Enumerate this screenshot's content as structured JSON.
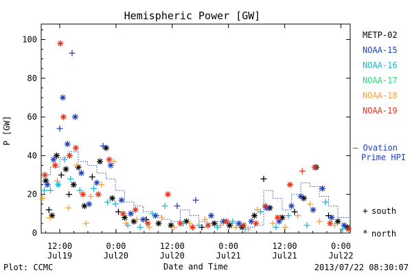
{
  "chart_data": {
    "type": "scatter",
    "title": "Hemispheric Power [GW]",
    "ylabel": "P [GW]",
    "xlabel": "Date and Time",
    "ylim": [
      0,
      108
    ],
    "yticks": [
      0,
      20,
      40,
      60,
      80,
      100
    ],
    "xlim": [
      0,
      100
    ],
    "xticks": [
      {
        "x": 6.0,
        "time": "12:00",
        "date": "Jul19"
      },
      {
        "x": 24.2,
        "time": "0:00",
        "date": "Jul20"
      },
      {
        "x": 42.4,
        "time": "12:00",
        "date": "Jul20"
      },
      {
        "x": 60.6,
        "time": "0:00",
        "date": "Jul21"
      },
      {
        "x": 78.8,
        "time": "12:00",
        "date": "Jul21"
      },
      {
        "x": 97.0,
        "time": "0:00",
        "date": "Jul22"
      }
    ],
    "grid": false,
    "legend_position": "right",
    "series": [
      {
        "name": "METP-02",
        "color": "#000000",
        "points": [
          {
            "x": 1.5,
            "y": 27,
            "m": "*"
          },
          {
            "x": 2.5,
            "y": 12,
            "m": "+"
          },
          {
            "x": 3.5,
            "y": 9,
            "m": "*"
          },
          {
            "x": 5.0,
            "y": 40,
            "m": "*"
          },
          {
            "x": 6.5,
            "y": 30,
            "m": "+"
          },
          {
            "x": 8.0,
            "y": 33,
            "m": "*"
          },
          {
            "x": 9.0,
            "y": 20,
            "m": "+"
          },
          {
            "x": 10.5,
            "y": 25,
            "m": "*"
          },
          {
            "x": 12.0,
            "y": 34,
            "m": "*"
          },
          {
            "x": 14.0,
            "y": 14,
            "m": "*"
          },
          {
            "x": 16.5,
            "y": 29,
            "m": "+"
          },
          {
            "x": 19.0,
            "y": 37,
            "m": "*"
          },
          {
            "x": 21.0,
            "y": 44,
            "m": "*"
          },
          {
            "x": 23.0,
            "y": 18,
            "m": "*"
          },
          {
            "x": 25.0,
            "y": 11,
            "m": "+"
          },
          {
            "x": 27.0,
            "y": 8,
            "m": "*"
          },
          {
            "x": 30.0,
            "y": 6,
            "m": "*"
          },
          {
            "x": 34.0,
            "y": 7,
            "m": "+"
          },
          {
            "x": 38.0,
            "y": 5,
            "m": "*"
          },
          {
            "x": 42.0,
            "y": 4,
            "m": "*"
          },
          {
            "x": 47.0,
            "y": 6,
            "m": "*"
          },
          {
            "x": 52.0,
            "y": 3,
            "m": "+"
          },
          {
            "x": 56.0,
            "y": 5,
            "m": "*"
          },
          {
            "x": 61.0,
            "y": 4,
            "m": "*"
          },
          {
            "x": 65.0,
            "y": 3,
            "m": "*"
          },
          {
            "x": 69.0,
            "y": 9,
            "m": "*"
          },
          {
            "x": 72.0,
            "y": 28,
            "m": "+"
          },
          {
            "x": 74.0,
            "y": 13,
            "m": "*"
          },
          {
            "x": 78.0,
            "y": 8,
            "m": "*"
          },
          {
            "x": 82.0,
            "y": 11,
            "m": "+"
          },
          {
            "x": 85.0,
            "y": 18,
            "m": "*"
          },
          {
            "x": 89.0,
            "y": 34,
            "m": "*"
          },
          {
            "x": 93.0,
            "y": 9,
            "m": "+"
          },
          {
            "x": 96.0,
            "y": 6,
            "m": "*"
          },
          {
            "x": 99.0,
            "y": 3,
            "m": "*"
          }
        ]
      },
      {
        "name": "NOAA-15",
        "color": "#1f3fbf",
        "points": [
          {
            "x": 2.0,
            "y": 25,
            "m": "*"
          },
          {
            "x": 4.0,
            "y": 38,
            "m": "*"
          },
          {
            "x": 6.0,
            "y": 54,
            "m": "+"
          },
          {
            "x": 7.0,
            "y": 70,
            "m": "*"
          },
          {
            "x": 8.5,
            "y": 46,
            "m": "*"
          },
          {
            "x": 10.0,
            "y": 93,
            "m": "+"
          },
          {
            "x": 11.0,
            "y": 60,
            "m": "*"
          },
          {
            "x": 13.0,
            "y": 31,
            "m": "*"
          },
          {
            "x": 15.5,
            "y": 15,
            "m": "*"
          },
          {
            "x": 18.0,
            "y": 26,
            "m": "*"
          },
          {
            "x": 20.0,
            "y": 45,
            "m": "+"
          },
          {
            "x": 22.5,
            "y": 35,
            "m": "*"
          },
          {
            "x": 26.0,
            "y": 17,
            "m": "*"
          },
          {
            "x": 29.0,
            "y": 10,
            "m": "*"
          },
          {
            "x": 33.0,
            "y": 7,
            "m": "*"
          },
          {
            "x": 37.0,
            "y": 9,
            "m": "*"
          },
          {
            "x": 44.0,
            "y": 14,
            "m": "+"
          },
          {
            "x": 50.0,
            "y": 17,
            "m": "+"
          },
          {
            "x": 55.0,
            "y": 9,
            "m": "*"
          },
          {
            "x": 59.0,
            "y": 6,
            "m": "*"
          },
          {
            "x": 64.0,
            "y": 5,
            "m": "*"
          },
          {
            "x": 68.0,
            "y": 6,
            "m": "*"
          },
          {
            "x": 73.0,
            "y": 13,
            "m": "*"
          },
          {
            "x": 77.0,
            "y": 6,
            "m": "*"
          },
          {
            "x": 81.0,
            "y": 14,
            "m": "*"
          },
          {
            "x": 84.0,
            "y": 19,
            "m": "*"
          },
          {
            "x": 88.0,
            "y": 12,
            "m": "*"
          },
          {
            "x": 91.0,
            "y": 23,
            "m": "*"
          },
          {
            "x": 94.0,
            "y": 8,
            "m": "*"
          },
          {
            "x": 98.0,
            "y": 4,
            "m": "*"
          }
        ]
      },
      {
        "name": "NOAA-16",
        "color": "#19b4d6",
        "points": [
          {
            "x": 1.0,
            "y": 22,
            "m": "+"
          },
          {
            "x": 3.0,
            "y": 22,
            "m": "+"
          },
          {
            "x": 5.5,
            "y": 25,
            "m": "*"
          },
          {
            "x": 7.5,
            "y": 38,
            "m": "+"
          },
          {
            "x": 9.5,
            "y": 28,
            "m": "+"
          },
          {
            "x": 12.5,
            "y": 22,
            "m": "+"
          },
          {
            "x": 17.0,
            "y": 23,
            "m": "+"
          },
          {
            "x": 21.5,
            "y": 16,
            "m": "+"
          },
          {
            "x": 24.0,
            "y": 15,
            "m": "+"
          },
          {
            "x": 28.0,
            "y": 4,
            "m": "+"
          },
          {
            "x": 32.0,
            "y": 3,
            "m": "+"
          },
          {
            "x": 36.0,
            "y": 10,
            "m": "+"
          },
          {
            "x": 40.0,
            "y": 14,
            "m": "+"
          },
          {
            "x": 46.0,
            "y": 5,
            "m": "+"
          },
          {
            "x": 51.0,
            "y": 4,
            "m": "+"
          },
          {
            "x": 57.0,
            "y": 3,
            "m": "+"
          },
          {
            "x": 62.0,
            "y": 6,
            "m": "+"
          },
          {
            "x": 66.0,
            "y": 2,
            "m": "+"
          },
          {
            "x": 71.0,
            "y": 11,
            "m": "+"
          },
          {
            "x": 76.0,
            "y": 3,
            "m": "+"
          },
          {
            "x": 80.0,
            "y": 9,
            "m": "+"
          },
          {
            "x": 86.0,
            "y": 4,
            "m": "+"
          },
          {
            "x": 92.0,
            "y": 16,
            "m": "+"
          },
          {
            "x": 97.5,
            "y": 2,
            "m": "+"
          }
        ]
      },
      {
        "name": "NOAA-17",
        "color": "#2fd87a",
        "points": []
      },
      {
        "name": "NOAA-18",
        "color": "#f2a03a",
        "points": [
          {
            "x": 0.5,
            "y": 18,
            "m": "+"
          },
          {
            "x": 2.8,
            "y": 8,
            "m": "+"
          },
          {
            "x": 5.2,
            "y": 27,
            "m": "+"
          },
          {
            "x": 8.8,
            "y": 13,
            "m": "+"
          },
          {
            "x": 11.5,
            "y": 35,
            "m": "+"
          },
          {
            "x": 14.5,
            "y": 5,
            "m": "+"
          },
          {
            "x": 16.0,
            "y": 19,
            "m": "+"
          },
          {
            "x": 19.5,
            "y": 25,
            "m": "+"
          },
          {
            "x": 23.5,
            "y": 37,
            "m": "+"
          },
          {
            "x": 27.5,
            "y": 5,
            "m": "+"
          },
          {
            "x": 31.0,
            "y": 7,
            "m": "+"
          },
          {
            "x": 35.0,
            "y": 3,
            "m": "+"
          },
          {
            "x": 39.0,
            "y": 8,
            "m": "+"
          },
          {
            "x": 43.0,
            "y": 3,
            "m": "+"
          },
          {
            "x": 48.0,
            "y": 5,
            "m": "+"
          },
          {
            "x": 53.0,
            "y": 7,
            "m": "+"
          },
          {
            "x": 58.0,
            "y": 4,
            "m": "+"
          },
          {
            "x": 63.0,
            "y": 3,
            "m": "+"
          },
          {
            "x": 67.0,
            "y": 2,
            "m": "+"
          },
          {
            "x": 70.0,
            "y": 12,
            "m": "+"
          },
          {
            "x": 75.0,
            "y": 5,
            "m": "+"
          },
          {
            "x": 79.0,
            "y": 3,
            "m": "+"
          },
          {
            "x": 83.0,
            "y": 9,
            "m": "+"
          },
          {
            "x": 87.0,
            "y": 15,
            "m": "+"
          },
          {
            "x": 90.0,
            "y": 6,
            "m": "+"
          },
          {
            "x": 95.0,
            "y": 4,
            "m": "+"
          }
        ]
      },
      {
        "name": "NOAA-19",
        "color": "#e0331a",
        "points": [
          {
            "x": 1.2,
            "y": 30,
            "m": "*"
          },
          {
            "x": 4.5,
            "y": 35,
            "m": "*"
          },
          {
            "x": 6.2,
            "y": 98,
            "m": "*"
          },
          {
            "x": 7.2,
            "y": 60,
            "m": "*"
          },
          {
            "x": 9.2,
            "y": 40,
            "m": "*"
          },
          {
            "x": 11.2,
            "y": 44,
            "m": "*"
          },
          {
            "x": 13.5,
            "y": 20,
            "m": "*"
          },
          {
            "x": 18.5,
            "y": 20,
            "m": "*"
          },
          {
            "x": 22.0,
            "y": 38,
            "m": "*"
          },
          {
            "x": 26.5,
            "y": 10,
            "m": "*"
          },
          {
            "x": 30.5,
            "y": 12,
            "m": "*"
          },
          {
            "x": 34.5,
            "y": 5,
            "m": "*"
          },
          {
            "x": 41.0,
            "y": 20,
            "m": "*"
          },
          {
            "x": 45.0,
            "y": 5,
            "m": "*"
          },
          {
            "x": 49.0,
            "y": 3,
            "m": "*"
          },
          {
            "x": 54.0,
            "y": 4,
            "m": "*"
          },
          {
            "x": 60.0,
            "y": 6,
            "m": "*"
          },
          {
            "x": 65.5,
            "y": 4,
            "m": "*"
          },
          {
            "x": 69.5,
            "y": 5,
            "m": "*"
          },
          {
            "x": 72.5,
            "y": 14,
            "m": "*"
          },
          {
            "x": 76.5,
            "y": 8,
            "m": "*"
          },
          {
            "x": 80.5,
            "y": 25,
            "m": "*"
          },
          {
            "x": 84.5,
            "y": 32,
            "m": "+"
          },
          {
            "x": 88.5,
            "y": 34,
            "m": "*"
          },
          {
            "x": 93.5,
            "y": 5,
            "m": "*"
          },
          {
            "x": 99.5,
            "y": 2,
            "m": "*"
          }
        ]
      }
    ],
    "ovation": {
      "name": "Ovation Prime HPI",
      "color": "#1f3fbf",
      "x": [
        0,
        3,
        6,
        9,
        12,
        15,
        18,
        21,
        24,
        27,
        30,
        33,
        36,
        39,
        42,
        45,
        48,
        51,
        54,
        57,
        60,
        63,
        66,
        69,
        72,
        75,
        78,
        81,
        84,
        87,
        90,
        93,
        96,
        100
      ],
      "y": [
        30,
        34,
        39,
        42,
        37,
        35,
        31,
        28,
        22,
        16,
        14,
        11,
        9,
        7,
        6,
        12,
        9,
        6,
        5,
        6,
        5,
        4,
        3,
        4,
        22,
        18,
        12,
        20,
        26,
        24,
        19,
        14,
        8,
        7
      ]
    },
    "legend": [
      {
        "label": "METP-02",
        "color": "#000000"
      },
      {
        "label": "NOAA-15",
        "color": "#1f3fbf"
      },
      {
        "label": "NOAA-16",
        "color": "#19b4d6"
      },
      {
        "label": "NOAA-17",
        "color": "#2fd87a"
      },
      {
        "label": "NOAA-18",
        "color": "#f2a03a"
      },
      {
        "label": "NOAA-19",
        "color": "#e0331a"
      }
    ],
    "ovation_label_line1": "– Ovation",
    "ovation_label_line2": "Prime HPI",
    "marker_legend": [
      {
        "symbol": "+",
        "label": "south"
      },
      {
        "symbol": "*",
        "label": "north"
      }
    ]
  },
  "footer": {
    "plot_credit": "Plot: CCMC",
    "timestamp": "2013/07/22 08:30:07"
  }
}
